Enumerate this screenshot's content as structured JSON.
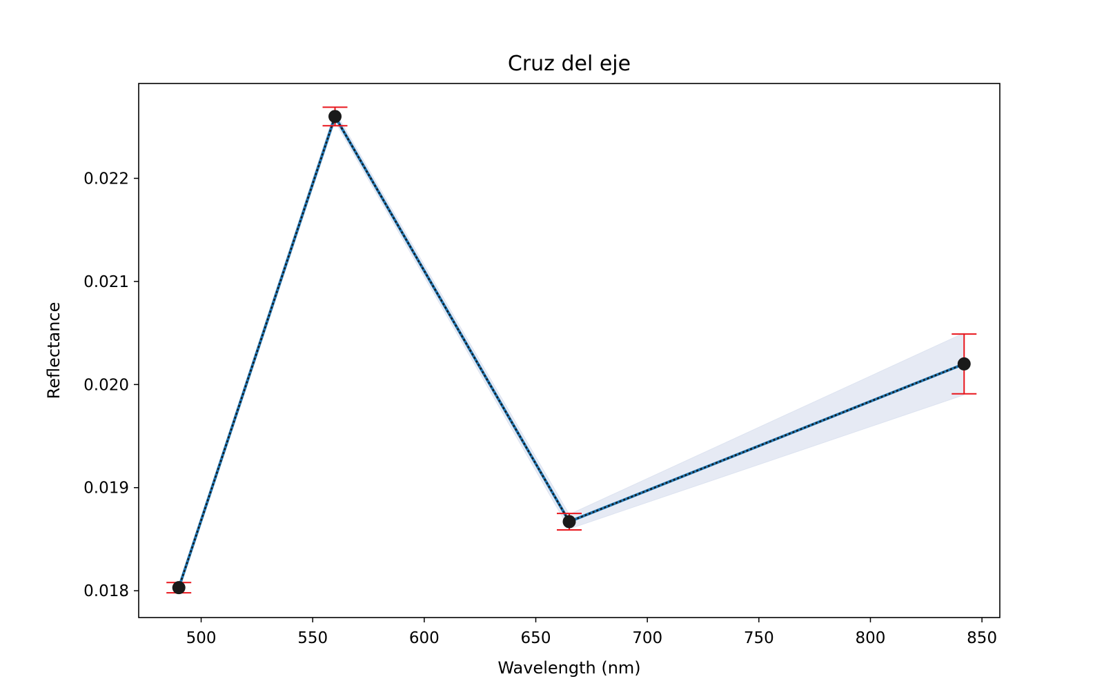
{
  "chart_data": {
    "type": "line",
    "title": "Cruz del eje",
    "xlabel": "Wavelength (nm)",
    "ylabel": "Reflectance",
    "xlim": [
      472,
      858
    ],
    "ylim": [
      0.01774,
      0.02292
    ],
    "xticks": [
      500,
      550,
      600,
      650,
      700,
      750,
      800,
      850
    ],
    "yticks": [
      0.018,
      0.019,
      0.02,
      0.021,
      0.022
    ],
    "xtick_labels": [
      "500",
      "550",
      "600",
      "650",
      "700",
      "750",
      "800",
      "850"
    ],
    "ytick_labels": [
      "0.018",
      "0.019",
      "0.020",
      "0.021",
      "0.022"
    ],
    "grid": false,
    "series": [
      {
        "x": [
          490,
          560,
          665,
          842
        ],
        "y": [
          0.01803,
          0.0226,
          0.01867,
          0.0202
        ],
        "yerr": [
          5e-05,
          9e-05,
          8e-05,
          0.00029
        ],
        "band_lower": [
          0.018,
          0.02255,
          0.0186,
          0.0199
        ],
        "band_upper": [
          0.01806,
          0.02265,
          0.01874,
          0.0205
        ]
      }
    ],
    "colors": {
      "line": "#1f77b4",
      "dotted_overlay": "#1a1a1a",
      "markers": "#1a1a1a",
      "error_bars": "#e8141b",
      "band": "#e6eaf4"
    }
  }
}
